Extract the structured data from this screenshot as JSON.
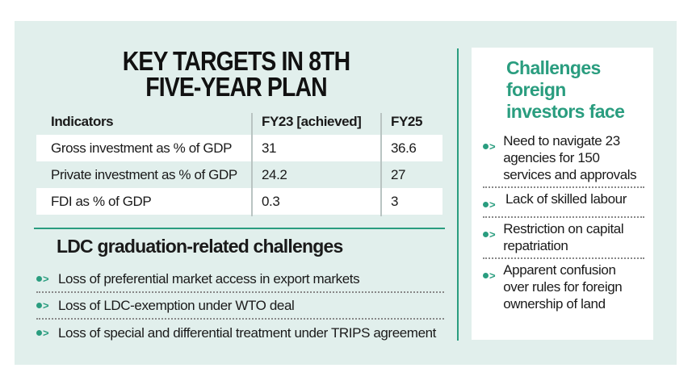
{
  "colors": {
    "accent": "#2a9d7f",
    "panel_bg": "#e1efec"
  },
  "title": [
    "KEY TARGETS IN 8TH",
    "FIVE-YEAR PLAN"
  ],
  "table": {
    "headers": [
      "Indicators",
      "FY23 [achieved]",
      "FY25"
    ],
    "rows": [
      [
        "Gross investment as % of GDP",
        "31",
        "36.6"
      ],
      [
        "Private investment as % of GDP",
        "24.2",
        "27"
      ],
      [
        "FDI as % of GDP",
        "0.3",
        "3"
      ]
    ]
  },
  "ldc": {
    "title": "LDC graduation-related challenges",
    "items": [
      "Loss of preferential market access in export markets",
      "Loss of LDC-exemption under WTO deal",
      "Loss of special and differential treatment under TRIPS agreement"
    ]
  },
  "foreign": {
    "title": [
      "Challenges",
      "foreign",
      "investors face"
    ],
    "items": [
      "Need to navigate 23 agencies for 150 services and approvals",
      "Lack of skilled labour",
      "Restriction on capital repatriation",
      "Apparent confusion over rules for foreign ownership of land"
    ]
  },
  "bullet_icon": "dot-chevron-right-icon"
}
